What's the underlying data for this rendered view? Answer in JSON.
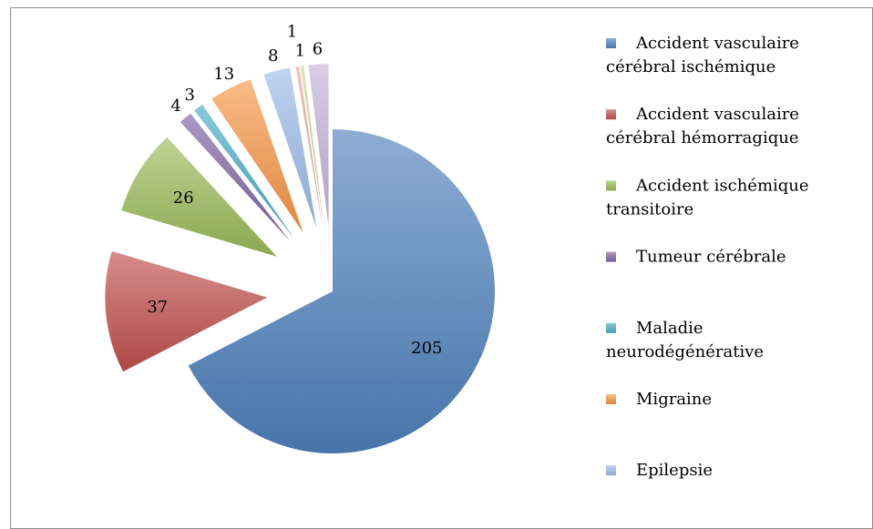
{
  "chart_data": {
    "type": "pie",
    "categories": [
      "Accident vasculaire cérébral ischémique",
      "Accident vasculaire cérébral hémorragique",
      "Accident ischémique transitoire",
      "Tumeur cérébrale",
      "Maladie neurodégénérative",
      "Migraine",
      "Epilepsie",
      null,
      null,
      null
    ],
    "values": [
      205,
      37,
      26,
      4,
      3,
      13,
      8,
      1,
      1,
      6
    ],
    "colors": [
      "#4f81bd",
      "#c0504d",
      "#9bbb59",
      "#8064a2",
      "#4bacc6",
      "#f79646",
      "#9dbbe8",
      "#e8a09e",
      "#c6dc9b",
      "#c3b3d9"
    ],
    "legend": "right"
  }
}
